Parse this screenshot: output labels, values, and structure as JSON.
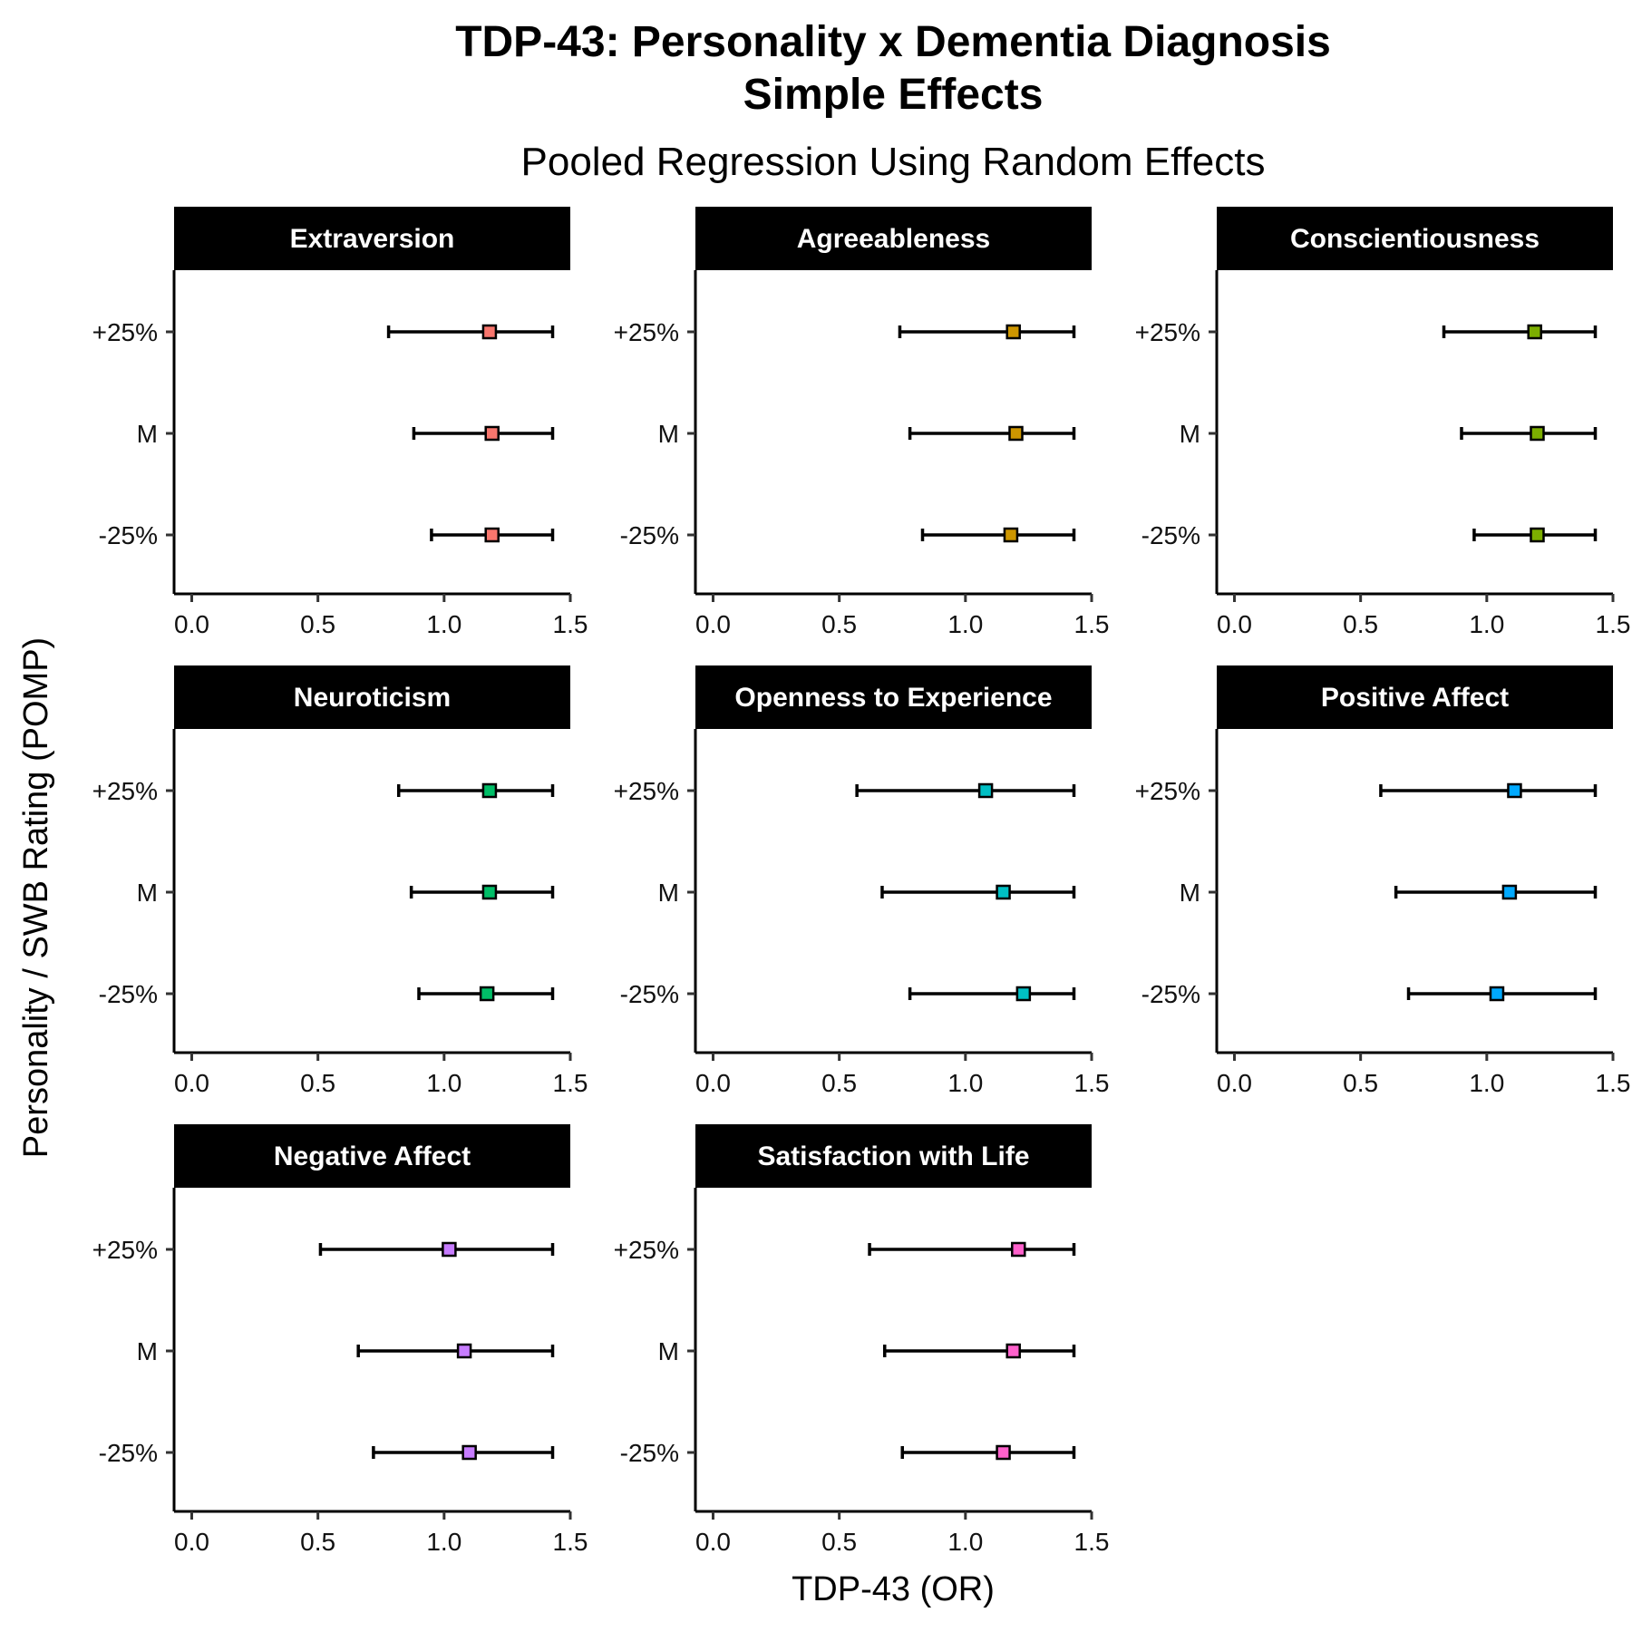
{
  "chart_data": {
    "type": "forest",
    "title": "TDP-43: Personality x Dementia Diagnosis",
    "title_line2": "Simple Effects",
    "subtitle": "Pooled Regression Using Random Effects",
    "xlabel": "TDP-43 (OR)",
    "ylabel": "Personality / SWB Rating (POMP)",
    "xlim": [
      -0.07,
      1.5
    ],
    "x_ticks": [
      "0.0",
      "0.5",
      "1.0",
      "1.5"
    ],
    "categories": [
      "+25%",
      "M",
      "-25%"
    ],
    "panels": [
      {
        "name": "Extraversion",
        "color": "#F8766D",
        "points": [
          {
            "level": "+25%",
            "est": 1.18,
            "lo": 0.78,
            "hi": 1.43
          },
          {
            "level": "M",
            "est": 1.19,
            "lo": 0.88,
            "hi": 1.43
          },
          {
            "level": "-25%",
            "est": 1.19,
            "lo": 0.95,
            "hi": 1.43
          }
        ]
      },
      {
        "name": "Agreeableness",
        "color": "#CD9600",
        "points": [
          {
            "level": "+25%",
            "est": 1.19,
            "lo": 0.74,
            "hi": 1.43
          },
          {
            "level": "M",
            "est": 1.2,
            "lo": 0.78,
            "hi": 1.43
          },
          {
            "level": "-25%",
            "est": 1.18,
            "lo": 0.83,
            "hi": 1.43
          }
        ]
      },
      {
        "name": "Conscientiousness",
        "color": "#7CAE00",
        "points": [
          {
            "level": "+25%",
            "est": 1.19,
            "lo": 0.83,
            "hi": 1.43
          },
          {
            "level": "M",
            "est": 1.2,
            "lo": 0.9,
            "hi": 1.43
          },
          {
            "level": "-25%",
            "est": 1.2,
            "lo": 0.95,
            "hi": 1.43
          }
        ]
      },
      {
        "name": "Neuroticism",
        "color": "#00BE67",
        "points": [
          {
            "level": "+25%",
            "est": 1.18,
            "lo": 0.82,
            "hi": 1.43
          },
          {
            "level": "M",
            "est": 1.18,
            "lo": 0.87,
            "hi": 1.43
          },
          {
            "level": "-25%",
            "est": 1.17,
            "lo": 0.9,
            "hi": 1.43
          }
        ]
      },
      {
        "name": "Openness to Experience",
        "color": "#00BFC4",
        "points": [
          {
            "level": "+25%",
            "est": 1.08,
            "lo": 0.57,
            "hi": 1.43
          },
          {
            "level": "M",
            "est": 1.15,
            "lo": 0.67,
            "hi": 1.43
          },
          {
            "level": "-25%",
            "est": 1.23,
            "lo": 0.78,
            "hi": 1.43
          }
        ]
      },
      {
        "name": "Positive Affect",
        "color": "#00A9FF",
        "points": [
          {
            "level": "+25%",
            "est": 1.11,
            "lo": 0.58,
            "hi": 1.43
          },
          {
            "level": "M",
            "est": 1.09,
            "lo": 0.64,
            "hi": 1.43
          },
          {
            "level": "-25%",
            "est": 1.04,
            "lo": 0.69,
            "hi": 1.43
          }
        ]
      },
      {
        "name": "Negative Affect",
        "color": "#C77CFF",
        "points": [
          {
            "level": "+25%",
            "est": 1.02,
            "lo": 0.51,
            "hi": 1.43
          },
          {
            "level": "M",
            "est": 1.08,
            "lo": 0.66,
            "hi": 1.43
          },
          {
            "level": "-25%",
            "est": 1.1,
            "lo": 0.72,
            "hi": 1.43
          }
        ]
      },
      {
        "name": "Satisfaction with Life",
        "color": "#FF61CC",
        "points": [
          {
            "level": "+25%",
            "est": 1.21,
            "lo": 0.62,
            "hi": 1.43
          },
          {
            "level": "M",
            "est": 1.19,
            "lo": 0.68,
            "hi": 1.43
          },
          {
            "level": "-25%",
            "est": 1.15,
            "lo": 0.75,
            "hi": 1.43
          }
        ]
      }
    ]
  }
}
